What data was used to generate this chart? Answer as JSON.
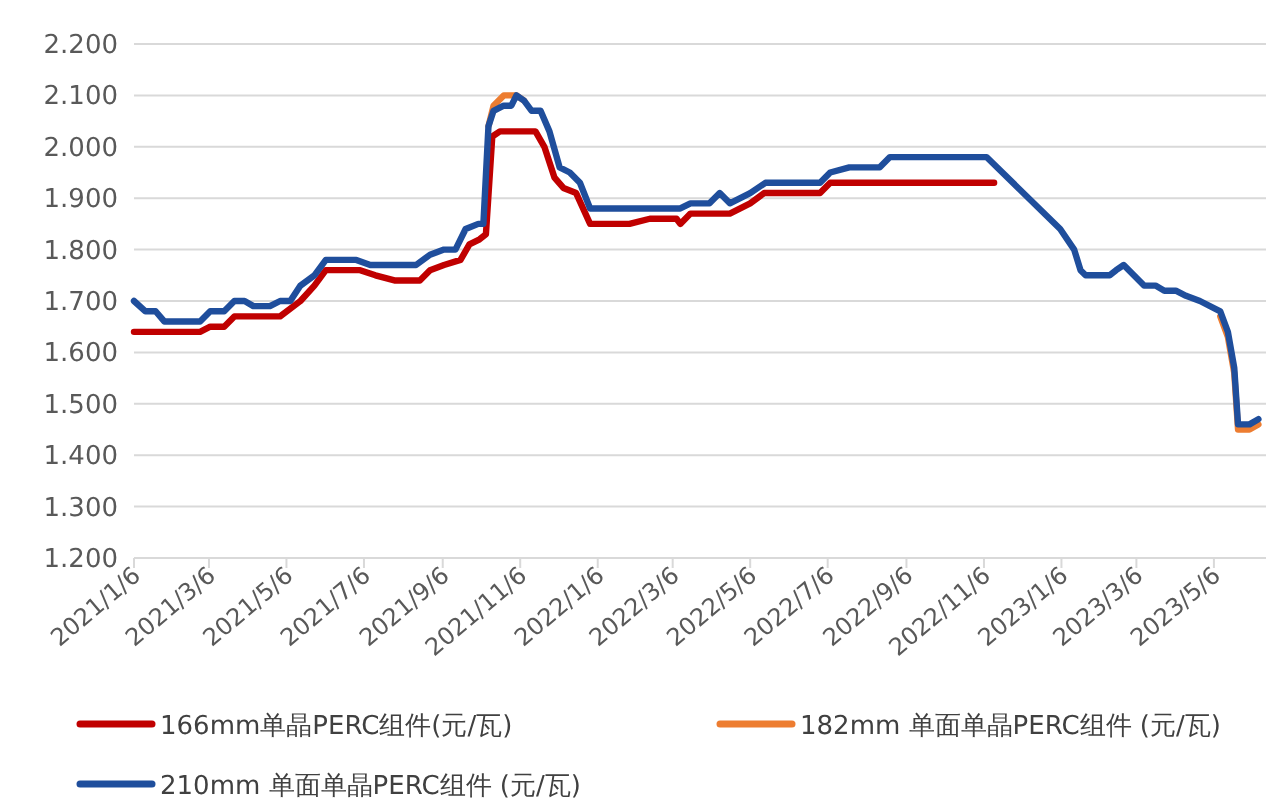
{
  "chart_data": {
    "type": "line",
    "legend": "bottom",
    "grid": "y",
    "marker": "none",
    "line_style": "solid",
    "ylim": [
      1.2,
      2.2
    ],
    "yticks": [
      {
        "value": 1.2,
        "label": "1.200"
      },
      {
        "value": 1.3,
        "label": "1.300"
      },
      {
        "value": 1.4,
        "label": "1.400"
      },
      {
        "value": 1.5,
        "label": "1.500"
      },
      {
        "value": 1.6,
        "label": "1.600"
      },
      {
        "value": 1.7,
        "label": "1.700"
      },
      {
        "value": 1.8,
        "label": "1.800"
      },
      {
        "value": 1.9,
        "label": "1.900"
      },
      {
        "value": 2.0,
        "label": "2.000"
      },
      {
        "value": 2.1,
        "label": "2.100"
      },
      {
        "value": 2.2,
        "label": "2.200"
      }
    ],
    "xlim": [
      "2021-01-06",
      "2023-06-16"
    ],
    "xticks": [
      {
        "value": "2021-01-06",
        "label": "2021/1/6"
      },
      {
        "value": "2021-03-06",
        "label": "2021/3/6"
      },
      {
        "value": "2021-05-06",
        "label": "2021/5/6"
      },
      {
        "value": "2021-07-06",
        "label": "2021/7/6"
      },
      {
        "value": "2021-09-06",
        "label": "2021/9/6"
      },
      {
        "value": "2021-11-06",
        "label": "2021/11/6"
      },
      {
        "value": "2022-01-06",
        "label": "2022/1/6"
      },
      {
        "value": "2022-03-06",
        "label": "2022/3/6"
      },
      {
        "value": "2022-05-06",
        "label": "2022/5/6"
      },
      {
        "value": "2022-07-06",
        "label": "2022/7/6"
      },
      {
        "value": "2022-09-06",
        "label": "2022/9/6"
      },
      {
        "value": "2022-11-06",
        "label": "2022/11/6"
      },
      {
        "value": "2023-01-06",
        "label": "2023/1/6"
      },
      {
        "value": "2023-03-06",
        "label": "2023/3/6"
      },
      {
        "value": "2023-05-06",
        "label": "2023/5/6"
      }
    ],
    "series": [
      {
        "name": "166mm单晶PERC组件(元/瓦)",
        "color": "#c00000",
        "x": [
          "2021-01-06",
          "2021-02-27",
          "2021-03-07",
          "2021-03-18",
          "2021-03-26",
          "2021-05-01",
          "2021-05-17",
          "2021-05-28",
          "2021-06-06",
          "2021-07-03",
          "2021-07-15",
          "2021-07-30",
          "2021-08-19",
          "2021-08-27",
          "2021-09-07",
          "2021-09-20",
          "2021-09-27",
          "2021-10-05",
          "2021-10-10",
          "2021-10-15",
          "2021-10-21",
          "2021-11-18",
          "2021-11-25",
          "2021-12-03",
          "2021-12-10",
          "2021-12-20",
          "2021-12-31",
          "2022-01-31",
          "2022-02-16",
          "2022-03-09",
          "2022-03-12",
          "2022-03-20",
          "2022-04-20",
          "2022-05-06",
          "2022-05-17",
          "2022-06-30",
          "2022-07-08",
          "2022-11-14"
        ],
        "values": [
          1.64,
          1.64,
          1.65,
          1.65,
          1.67,
          1.67,
          1.7,
          1.73,
          1.76,
          1.76,
          1.75,
          1.74,
          1.74,
          1.76,
          1.77,
          1.78,
          1.81,
          1.82,
          1.83,
          2.02,
          2.03,
          2.03,
          2.0,
          1.94,
          1.92,
          1.91,
          1.85,
          1.85,
          1.86,
          1.86,
          1.85,
          1.87,
          1.87,
          1.89,
          1.91,
          1.91,
          1.93,
          1.93
        ]
      },
      {
        "name": "182mm 单面单晶PERC组件 (元/瓦)",
        "color": "#ed7d31",
        "x": [
          "2021-10-12",
          "2021-10-16",
          "2021-10-24",
          "2021-10-30",
          "2021-11-03",
          "2021-11-09"
        ],
        "values": [
          2.04,
          2.08,
          2.1,
          2.1,
          2.1,
          2.09
        ]
      },
      {
        "color": "#ed7d31",
        "x": [
          "2023-05-11",
          "2023-05-17",
          "2023-05-22",
          "2023-05-25",
          "2023-06-03",
          "2023-06-10"
        ],
        "values": [
          1.67,
          1.63,
          1.56,
          1.45,
          1.45,
          1.46
        ]
      },
      {
        "name": "210mm 单面单晶PERC组件 (元/瓦)",
        "color": "#1f4e9c",
        "x": [
          "2021-01-06",
          "2021-01-15",
          "2021-01-23",
          "2021-01-30",
          "2021-02-27",
          "2021-03-07",
          "2021-03-18",
          "2021-03-26",
          "2021-04-03",
          "2021-04-10",
          "2021-04-23",
          "2021-05-01",
          "2021-05-09",
          "2021-05-17",
          "2021-05-28",
          "2021-06-06",
          "2021-06-30",
          "2021-07-11",
          "2021-08-16",
          "2021-08-27",
          "2021-09-07",
          "2021-09-16",
          "2021-09-24",
          "2021-10-04",
          "2021-10-08",
          "2021-10-12",
          "2021-10-16",
          "2021-10-24",
          "2021-10-30",
          "2021-11-03",
          "2021-11-09",
          "2021-11-15",
          "2021-11-22",
          "2021-11-29",
          "2021-12-07",
          "2021-12-15",
          "2021-12-23",
          "2021-12-31",
          "2022-03-12",
          "2022-03-20",
          "2022-04-04",
          "2022-04-12",
          "2022-04-20",
          "2022-05-06",
          "2022-05-18",
          "2022-06-30",
          "2022-07-08",
          "2022-07-23",
          "2022-08-16",
          "2022-08-24",
          "2022-11-08",
          "2023-01-05",
          "2023-01-16",
          "2023-01-21",
          "2023-01-25",
          "2023-02-13",
          "2023-02-18",
          "2023-02-24",
          "2023-03-04",
          "2023-03-12",
          "2023-03-21",
          "2023-03-28",
          "2023-04-06",
          "2023-04-14",
          "2023-04-25",
          "2023-05-11",
          "2023-05-17",
          "2023-05-22",
          "2023-05-25",
          "2023-06-03",
          "2023-06-10"
        ],
        "values": [
          1.7,
          1.68,
          1.68,
          1.66,
          1.66,
          1.68,
          1.68,
          1.7,
          1.7,
          1.69,
          1.69,
          1.7,
          1.7,
          1.73,
          1.75,
          1.78,
          1.78,
          1.77,
          1.77,
          1.79,
          1.8,
          1.8,
          1.84,
          1.85,
          1.85,
          2.04,
          2.07,
          2.08,
          2.08,
          2.1,
          2.09,
          2.07,
          2.07,
          2.03,
          1.96,
          1.95,
          1.93,
          1.88,
          1.88,
          1.89,
          1.89,
          1.91,
          1.89,
          1.91,
          1.93,
          1.93,
          1.95,
          1.96,
          1.96,
          1.98,
          1.98,
          1.84,
          1.8,
          1.76,
          1.75,
          1.75,
          1.76,
          1.77,
          1.75,
          1.73,
          1.73,
          1.72,
          1.72,
          1.71,
          1.7,
          1.68,
          1.64,
          1.57,
          1.46,
          1.46,
          1.47
        ]
      }
    ]
  }
}
